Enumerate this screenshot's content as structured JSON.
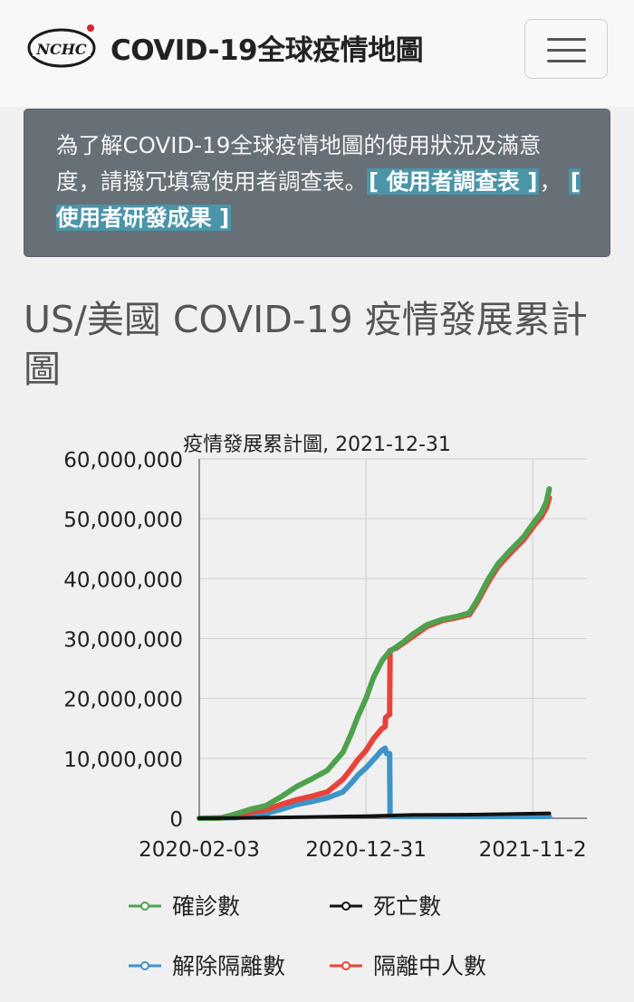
{
  "header": {
    "logo_text": "NCHC",
    "title": "COVID-19全球疫情地圖"
  },
  "alert": {
    "text": "為了解COVID-19全球疫情地圖的使用狀況及滿意度，請撥冗填寫使用者調查表。",
    "link_survey": "[ 使用者調查表 ]",
    "separator": "，",
    "link_results": "[ 使用者研發成果 ]"
  },
  "page": {
    "heading": "US/美國 COVID-19 疫情發展累計圖"
  },
  "chart_data": {
    "type": "line",
    "title": "疫情發展累計圖, 2021-12-31",
    "x_tick_labels": [
      "2020-02-03",
      "2020-12-31",
      "2021-11-2"
    ],
    "x_range": [
      "2020-02-03",
      "2021-12-31"
    ],
    "y_tick_labels": [
      "0",
      "10,000,000",
      "20,000,000",
      "30,000,000",
      "40,000,000",
      "50,000,000",
      "60,000,000"
    ],
    "ylim": [
      0,
      60000000
    ],
    "grid": true,
    "legend_position": "bottom",
    "series": [
      {
        "name": "確診數",
        "color": "#4ea24e",
        "points": [
          [
            "2020-02-03",
            0
          ],
          [
            "2020-03-15",
            20000
          ],
          [
            "2020-04-15",
            700000
          ],
          [
            "2020-05-15",
            1500000
          ],
          [
            "2020-06-15",
            2100000
          ],
          [
            "2020-07-15",
            3600000
          ],
          [
            "2020-08-15",
            5300000
          ],
          [
            "2020-09-15",
            6600000
          ],
          [
            "2020-10-15",
            8000000
          ],
          [
            "2020-11-15",
            11000000
          ],
          [
            "2020-12-01",
            14000000
          ],
          [
            "2020-12-15",
            17000000
          ],
          [
            "2020-12-31",
            20000000
          ],
          [
            "2021-01-15",
            23500000
          ],
          [
            "2021-02-01",
            26300000
          ],
          [
            "2021-02-15",
            27800000
          ],
          [
            "2021-03-01",
            28600000
          ],
          [
            "2021-03-15",
            29400000
          ],
          [
            "2021-04-01",
            30600000
          ],
          [
            "2021-05-01",
            32300000
          ],
          [
            "2021-06-01",
            33200000
          ],
          [
            "2021-07-01",
            33700000
          ],
          [
            "2021-07-25",
            34300000
          ],
          [
            "2021-08-10",
            36500000
          ],
          [
            "2021-09-01",
            40000000
          ],
          [
            "2021-09-20",
            42500000
          ],
          [
            "2021-10-15",
            44800000
          ],
          [
            "2021-11-10",
            47000000
          ],
          [
            "2021-12-01",
            49500000
          ],
          [
            "2021-12-15",
            51000000
          ],
          [
            "2021-12-25",
            52800000
          ],
          [
            "2021-12-31",
            55000000
          ]
        ]
      },
      {
        "name": "死亡數",
        "color": "#111111",
        "points": [
          [
            "2020-02-03",
            0
          ],
          [
            "2020-05-01",
            60000
          ],
          [
            "2020-09-01",
            190000
          ],
          [
            "2020-12-31",
            350000
          ],
          [
            "2021-04-01",
            550000
          ],
          [
            "2021-08-01",
            610000
          ],
          [
            "2021-12-31",
            820000
          ]
        ]
      },
      {
        "name": "解除隔離數",
        "color": "#3e94c8",
        "points": [
          [
            "2020-02-03",
            0
          ],
          [
            "2020-04-15",
            100000
          ],
          [
            "2020-05-15",
            400000
          ],
          [
            "2020-06-15",
            800000
          ],
          [
            "2020-07-15",
            1500000
          ],
          [
            "2020-08-15",
            2300000
          ],
          [
            "2020-09-15",
            2800000
          ],
          [
            "2020-10-15",
            3400000
          ],
          [
            "2020-11-15",
            4400000
          ],
          [
            "2020-12-01",
            5800000
          ],
          [
            "2020-12-15",
            7200000
          ],
          [
            "2020-12-31",
            8400000
          ],
          [
            "2021-01-15",
            9800000
          ],
          [
            "2021-01-31",
            11300000
          ],
          [
            "2021-02-07",
            11700000
          ],
          [
            "2021-02-10",
            10800000
          ],
          [
            "2021-02-16",
            10800000
          ],
          [
            "2021-02-17",
            300000
          ],
          [
            "2021-12-31",
            300000
          ]
        ]
      },
      {
        "name": "隔離中人數",
        "color": "#e8433a",
        "points": [
          [
            "2020-02-03",
            0
          ],
          [
            "2020-03-15",
            20000
          ],
          [
            "2020-04-15",
            500000
          ],
          [
            "2020-05-15",
            1000000
          ],
          [
            "2020-06-15",
            1400000
          ],
          [
            "2020-07-15",
            2300000
          ],
          [
            "2020-08-15",
            3100000
          ],
          [
            "2020-09-15",
            3700000
          ],
          [
            "2020-10-15",
            4400000
          ],
          [
            "2020-11-15",
            6500000
          ],
          [
            "2020-12-01",
            8200000
          ],
          [
            "2020-12-15",
            9800000
          ],
          [
            "2020-12-31",
            11300000
          ],
          [
            "2021-01-15",
            13300000
          ],
          [
            "2021-01-31",
            14900000
          ],
          [
            "2021-02-07",
            15300000
          ],
          [
            "2021-02-08",
            16800000
          ],
          [
            "2021-02-15",
            17300000
          ],
          [
            "2021-02-16",
            17300000
          ],
          [
            "2021-02-17",
            28000000
          ],
          [
            "2021-03-01",
            28400000
          ],
          [
            "2021-03-15",
            29200000
          ],
          [
            "2021-04-01",
            30200000
          ],
          [
            "2021-05-01",
            32000000
          ],
          [
            "2021-06-01",
            33000000
          ],
          [
            "2021-07-01",
            33500000
          ],
          [
            "2021-07-25",
            34000000
          ],
          [
            "2021-08-10",
            36100000
          ],
          [
            "2021-09-01",
            39500000
          ],
          [
            "2021-09-20",
            42000000
          ],
          [
            "2021-10-15",
            44300000
          ],
          [
            "2021-11-10",
            46500000
          ],
          [
            "2021-12-01",
            48900000
          ],
          [
            "2021-12-15",
            50300000
          ],
          [
            "2021-12-25",
            51800000
          ],
          [
            "2021-12-31",
            53500000
          ]
        ]
      }
    ]
  }
}
